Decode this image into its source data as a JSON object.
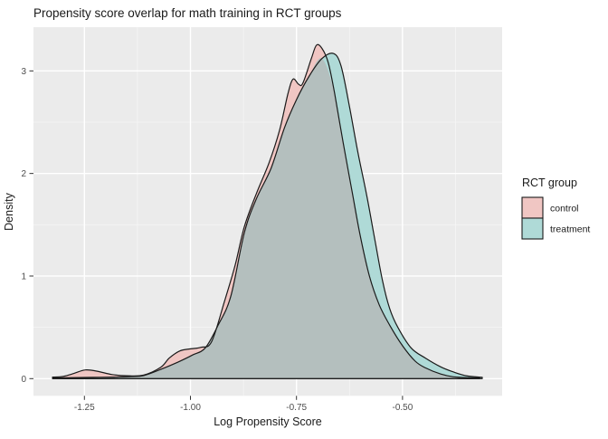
{
  "chart_data": {
    "type": "area",
    "subtype": "kernel-density",
    "title": "Propensity score overlap for math training in RCT groups",
    "xlabel": "Log Propensity Score",
    "ylabel": "Density",
    "xlim": [
      -1.3701,
      -0.2651
    ],
    "ylim": [
      -0.1677,
      3.4265
    ],
    "x_ticks": {
      "values": [
        -1.25,
        -1.0,
        -0.75,
        -0.5
      ],
      "labels": [
        "-1.25",
        "-1.00",
        "-0.75",
        "-0.50"
      ]
    },
    "x_minor": [
      -1.125,
      -0.875,
      -0.625,
      -0.375
    ],
    "y_ticks": {
      "values": [
        0,
        1,
        2,
        3
      ],
      "labels": [
        "0",
        "1",
        "2",
        "3"
      ]
    },
    "y_minor": [
      0.5,
      1.5,
      2.5
    ],
    "grid": true,
    "panel_bg": "#EBEBEB",
    "grid_major_color": "#FFFFFF",
    "grid_minor_color": "#F6F6F6",
    "tick_color": "#333333",
    "outline_color": "#1A1A1A",
    "overlap_fill": "#B4BFBE",
    "crossing_x": -0.675,
    "legend": {
      "title": "RCT group",
      "position": "right",
      "entries": [
        {
          "label": "control",
          "fill": "#F0C6C3"
        },
        {
          "label": "treatment",
          "fill": "#AFDAD7"
        }
      ]
    },
    "series": [
      {
        "name": "control",
        "fill": "#F0C6C3",
        "points": [
          [
            -1.325,
            0.015
          ],
          [
            -1.3,
            0.022
          ],
          [
            -1.275,
            0.05
          ],
          [
            -1.248,
            0.085
          ],
          [
            -1.22,
            0.072
          ],
          [
            -1.185,
            0.04
          ],
          [
            -1.15,
            0.028
          ],
          [
            -1.11,
            0.035
          ],
          [
            -1.07,
            0.11
          ],
          [
            -1.05,
            0.2
          ],
          [
            -1.025,
            0.27
          ],
          [
            -1.0,
            0.29
          ],
          [
            -0.975,
            0.305
          ],
          [
            -0.95,
            0.36
          ],
          [
            -0.92,
            0.75
          ],
          [
            -0.895,
            1.1
          ],
          [
            -0.873,
            1.48
          ],
          [
            -0.845,
            1.8
          ],
          [
            -0.815,
            2.1
          ],
          [
            -0.79,
            2.42
          ],
          [
            -0.77,
            2.78
          ],
          [
            -0.758,
            2.92
          ],
          [
            -0.745,
            2.87
          ],
          [
            -0.735,
            2.88
          ],
          [
            -0.715,
            3.12
          ],
          [
            -0.703,
            3.25
          ],
          [
            -0.69,
            3.22
          ],
          [
            -0.675,
            3.08
          ],
          [
            -0.66,
            2.78
          ],
          [
            -0.64,
            2.3
          ],
          [
            -0.62,
            1.85
          ],
          [
            -0.6,
            1.4
          ],
          [
            -0.578,
            1.0
          ],
          [
            -0.555,
            0.72
          ],
          [
            -0.53,
            0.52
          ],
          [
            -0.5,
            0.32
          ],
          [
            -0.47,
            0.17
          ],
          [
            -0.446,
            0.105
          ],
          [
            -0.41,
            0.045
          ],
          [
            -0.38,
            0.018
          ],
          [
            -0.345,
            0.01
          ],
          [
            -0.318,
            0.008
          ]
        ]
      },
      {
        "name": "treatment",
        "fill": "#AFDAD7",
        "points": [
          [
            -1.325,
            0.008
          ],
          [
            -1.28,
            0.01
          ],
          [
            -1.23,
            0.012
          ],
          [
            -1.18,
            0.015
          ],
          [
            -1.14,
            0.02
          ],
          [
            -1.11,
            0.03
          ],
          [
            -1.07,
            0.09
          ],
          [
            -1.03,
            0.16
          ],
          [
            -0.995,
            0.23
          ],
          [
            -0.965,
            0.3
          ],
          [
            -0.935,
            0.52
          ],
          [
            -0.905,
            0.8
          ],
          [
            -0.873,
            1.42
          ],
          [
            -0.845,
            1.75
          ],
          [
            -0.81,
            2.05
          ],
          [
            -0.778,
            2.45
          ],
          [
            -0.75,
            2.72
          ],
          [
            -0.72,
            2.95
          ],
          [
            -0.69,
            3.12
          ],
          [
            -0.663,
            3.17
          ],
          [
            -0.645,
            3.05
          ],
          [
            -0.625,
            2.65
          ],
          [
            -0.605,
            2.2
          ],
          [
            -0.585,
            1.8
          ],
          [
            -0.565,
            1.35
          ],
          [
            -0.547,
            0.95
          ],
          [
            -0.53,
            0.68
          ],
          [
            -0.511,
            0.5
          ],
          [
            -0.48,
            0.3
          ],
          [
            -0.446,
            0.2
          ],
          [
            -0.41,
            0.115
          ],
          [
            -0.382,
            0.068
          ],
          [
            -0.35,
            0.028
          ],
          [
            -0.312,
            0.012
          ]
        ]
      }
    ]
  }
}
